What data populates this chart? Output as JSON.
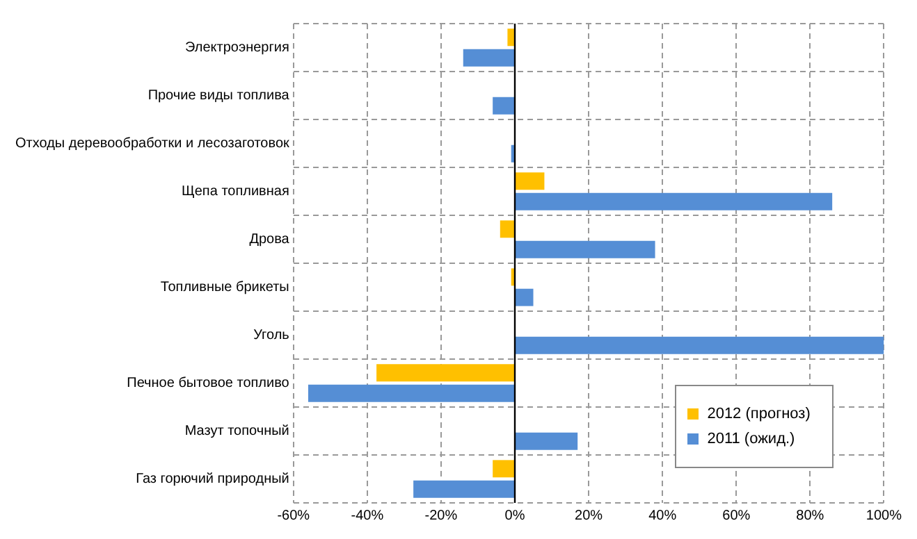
{
  "chart_data": {
    "type": "bar",
    "orientation": "horizontal",
    "categories": [
      "Электроэнергия",
      "Прочие виды топлива",
      "Отходы деревообработки и лесозаготовок",
      "Щепа топливная",
      "Дрова",
      "Топливные брикеты",
      "Уголь",
      "Печное бытовое топливо",
      "Мазут топочный",
      "Газ горючий природный"
    ],
    "series": [
      {
        "name": "2012 (прогноз)",
        "color": "#ffc000",
        "values": [
          -2,
          null,
          null,
          8,
          -4,
          -1,
          null,
          -37.5,
          null,
          -6
        ]
      },
      {
        "name": "2011 (ожид.)",
        "color": "#558ed5",
        "values": [
          -14,
          -6,
          -1,
          86,
          38,
          5,
          100,
          -56,
          17,
          -27.5
        ]
      }
    ],
    "xlim": [
      -60,
      100
    ],
    "xticks": [
      {
        "value": -60,
        "label": "-60%"
      },
      {
        "value": -40,
        "label": "-40%"
      },
      {
        "value": -20,
        "label": "-20%"
      },
      {
        "value": 0,
        "label": "0%"
      },
      {
        "value": 20,
        "label": "20%"
      },
      {
        "value": 40,
        "label": "40%"
      },
      {
        "value": 60,
        "label": "60%"
      },
      {
        "value": 80,
        "label": "80%"
      },
      {
        "value": 100,
        "label": "100%"
      }
    ],
    "grid": true,
    "legend": "bottom right"
  }
}
